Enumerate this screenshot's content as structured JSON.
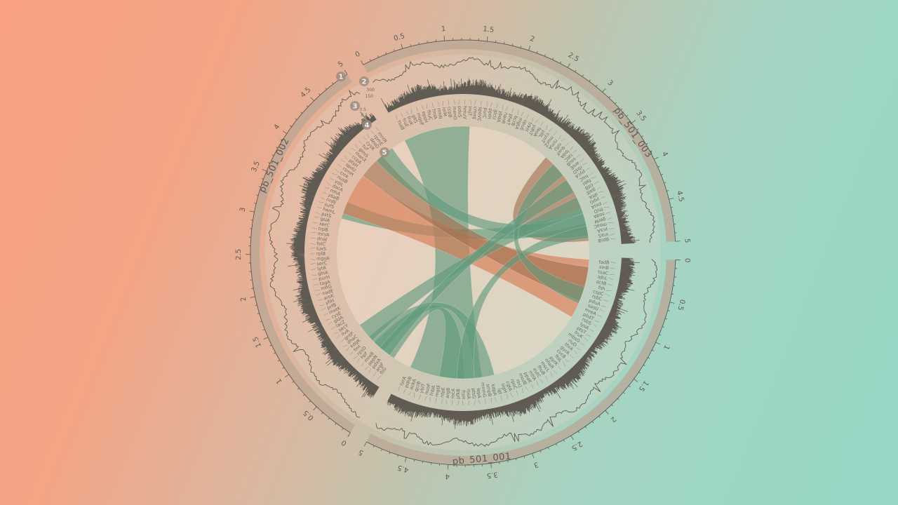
{
  "segments": [
    {
      "name": "pb_501_001",
      "ticks": [
        "0",
        "0.5",
        "1",
        "1.5",
        "2",
        "2.5",
        "3",
        "3.5",
        "4",
        "4.5",
        "5"
      ]
    },
    {
      "name": "pb_501_002",
      "ticks": [
        "0",
        "0.5",
        "1",
        "1.5",
        "2",
        "2.5",
        "3",
        "3.5",
        "4",
        "4.5",
        "5"
      ]
    },
    {
      "name": "pb_501_003",
      "ticks": [
        "0",
        "0.5",
        "1",
        "1.5",
        "2",
        "2.5",
        "3",
        "3.5",
        "4",
        "4.5",
        "5"
      ]
    }
  ],
  "tracks": [
    "1",
    "2",
    "3",
    "4",
    "5"
  ],
  "track2_scale": [
    "300",
    "150"
  ],
  "track3_scale": [
    "0.5",
    "0.1"
  ],
  "genes": {
    "pb_501_001": [
      "fadB",
      "sinB",
      "tsaC",
      "ldhL",
      "dctB",
      "fsh",
      "cspC",
      "rsbC",
      "pduA",
      "sasU",
      "mreA",
      "pbdT",
      "rsbS",
      "lysA",
      "ptsT",
      "fruK",
      "mbsO",
      "rluD",
      "thrA",
      "gyrA",
      "cvcB",
      "ftsL",
      "pyrK",
      "nhaR",
      "mscL",
      "fhuB",
      "eutC",
      "mtlA",
      "ppaK",
      "modE",
      "recJ",
      "rpoC",
      "cgtA",
      "sigH",
      "lgt",
      "kdpA",
      "smpB",
      "mnmG",
      "lepA",
      "ptsG",
      "rbsA",
      "ftsH",
      "pfkB",
      "rocA",
      "argB",
      "ntpE",
      "mgtE",
      "fnbA",
      "nuoF",
      "ybiT",
      "qcrB",
      "ackA",
      "pdhB",
      "tyrA"
    ],
    "pb_501_002": [
      "fliG",
      "argF",
      "pdxA",
      "pepN",
      "mreB",
      "hpf",
      "rpsD",
      "fmt",
      "kdgK",
      "dhaC",
      "gntP",
      "ilvA",
      "secY",
      "lacZ",
      "gldA",
      "cysE",
      "metK",
      "prfB",
      "yfiH",
      "aroK",
      "nadE",
      "mltG",
      "tagA",
      "purH",
      "glnA",
      "lytR",
      "serC",
      "mgsA",
      "rplB",
      "luxS",
      "folC",
      "dnaJ",
      "mrsA",
      "trpB",
      "xerC",
      "gsiA",
      "pstS",
      "hemL",
      "sufS",
      "nrdE",
      "ybaB",
      "rnhA",
      "dacA",
      "ydiL",
      "nusB",
      "cmk",
      "rsmH",
      "spoU",
      "ptsH",
      "ccpA",
      "manX",
      "glmS",
      "tuf",
      "cysK",
      "deoD",
      "rpmE",
      "mntR"
    ],
    "pb_501_003": [
      "tsaB",
      "fruE",
      "fruK",
      "gltS",
      "mqoP",
      "epsH",
      "fhuC",
      "fmlA",
      "rlmN",
      "iolM",
      "ccpB",
      "menD",
      "pduS",
      "hmuV",
      "lmjT",
      "cmmJ",
      "spoVC",
      "purC",
      "ppiH",
      "glcU",
      "ybdA",
      "nanR",
      "pheT",
      "bcrB",
      "mgtA",
      "opuE",
      "trkH",
      "ydhT",
      "feoA",
      "yitL",
      "cynT",
      "murZ",
      "rsmA",
      "nifU",
      "queF",
      "lpdA",
      "tatC",
      "ssuB",
      "aroE",
      "rbsD",
      "pycA",
      "hisC",
      "fabI",
      "citB",
      "galE",
      "dltA",
      "yqiG",
      "pssA",
      "thiD",
      "sodA",
      "gerM",
      "moaC",
      "ycsA",
      "vraS",
      "gpsB"
    ]
  },
  "colors": {
    "outer_ring": "#b9a694",
    "tick": "#5f5a54",
    "signal": "#5f5a52",
    "ribbon_green": "#5f9a7d",
    "ribbon_orange": "#d9774f",
    "ribbon_brown": "#a2704f",
    "disc": "#f2dccb"
  },
  "links": [
    {
      "from": [
        "pb_501_003",
        0.02,
        1.35
      ],
      "to": [
        "pb_501_001",
        3.45,
        4.9
      ],
      "color": "green"
    },
    {
      "from": [
        "pb_501_003",
        3.0,
        4.25
      ],
      "to": [
        "pb_501_003",
        4.55,
        4.9
      ],
      "color": "brown"
    },
    {
      "from": [
        "pb_501_003",
        4.25,
        4.7
      ],
      "to": [
        "pb_501_002",
        3.2,
        3.55
      ],
      "color": "green"
    },
    {
      "from": [
        "pb_501_001",
        0.05,
        1.25
      ],
      "to": [
        "pb_501_002",
        3.3,
        4.15
      ],
      "color": "orange"
    },
    {
      "from": [
        "pb_501_002",
        4.15,
        4.7
      ],
      "to": [
        "pb_501_001",
        0.2,
        0.9
      ],
      "color": "brown"
    },
    {
      "from": [
        "pb_501_002",
        4.55,
        4.95
      ],
      "to": [
        "pb_501_003",
        4.35,
        4.8
      ],
      "color": "green"
    },
    {
      "from": [
        "pb_501_002",
        0.05,
        0.55
      ],
      "to": [
        "pb_501_001",
        3.8,
        4.3
      ],
      "color": "green"
    },
    {
      "from": [
        "pb_501_002",
        0.3,
        0.7
      ],
      "to": [
        "pb_501_001",
        3.2,
        3.6
      ],
      "color": "green"
    },
    {
      "from": [
        "pb_501_002",
        0.6,
        1.0
      ],
      "to": [
        "pb_501_003",
        4.0,
        4.35
      ],
      "color": "green"
    },
    {
      "from": [
        "pb_501_001",
        3.6,
        3.95
      ],
      "to": [
        "pb_501_003",
        4.6,
        4.85
      ],
      "color": "green"
    },
    {
      "from": [
        "pb_501_001",
        0.6,
        0.95
      ],
      "to": [
        "pb_501_003",
        3.2,
        3.5
      ],
      "color": "green"
    },
    {
      "from": [
        "pb_501_002",
        0.15,
        0.4
      ],
      "to": [
        "pb_501_003",
        3.6,
        3.9
      ],
      "color": "green"
    }
  ]
}
